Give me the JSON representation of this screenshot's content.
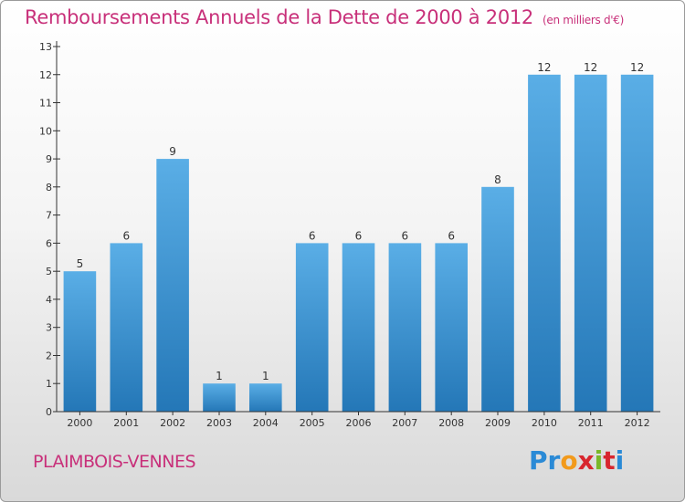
{
  "header": {
    "title": "Remboursements Annuels de la Dette de 2000 à 2012",
    "unit": "(en milliers d'€)"
  },
  "footer": {
    "commune": "PLAIMBOIS-VENNES",
    "logo_letters": [
      "P",
      "r",
      "o",
      "x",
      "i",
      "t",
      "i"
    ],
    "logo_colors": [
      "#2a8ad6",
      "#2a8ad6",
      "#f29a1c",
      "#d8262e",
      "#7ab829",
      "#d8262e",
      "#2a8ad6"
    ]
  },
  "chart_data": {
    "type": "bar",
    "title": "Remboursements Annuels de la Dette de 2000 à 2012",
    "categories": [
      "2000",
      "2001",
      "2002",
      "2003",
      "2004",
      "2005",
      "2006",
      "2007",
      "2008",
      "2009",
      "2010",
      "2011",
      "2012"
    ],
    "values": [
      5,
      6,
      9,
      1,
      1,
      6,
      6,
      6,
      6,
      8,
      12,
      12,
      12
    ],
    "data_labels": [
      "5",
      "6",
      "9",
      "1",
      "1",
      "6",
      "6",
      "6",
      "6",
      "8",
      "12",
      "12",
      "12"
    ],
    "y_ticks": [
      "0",
      "1",
      "2",
      "3",
      "4",
      "5",
      "6",
      "7",
      "8",
      "9",
      "10",
      "11",
      "12",
      "13"
    ],
    "ylim": [
      0,
      13
    ],
    "grid": false,
    "colors": {
      "bar_top": "#5aaee6",
      "bar_bottom": "#2477b7",
      "axis": "#333333"
    }
  }
}
